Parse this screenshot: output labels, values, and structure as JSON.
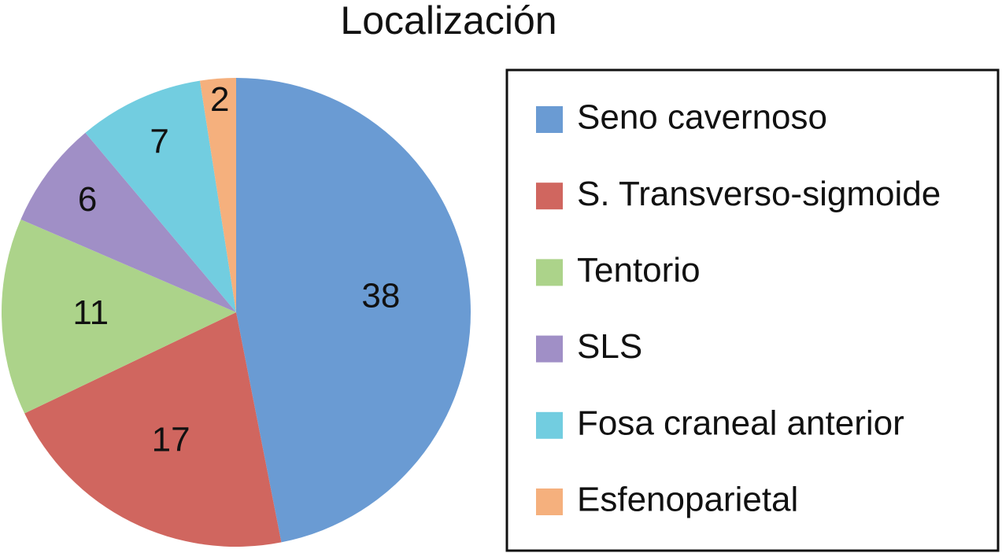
{
  "chart_data": {
    "type": "pie",
    "title": "Localización",
    "categories": [
      "Seno cavernoso",
      "S. Transverso-sigmoide",
      "Tentorio",
      "SLS",
      "Fosa craneal anterior",
      "Esfenoparietal"
    ],
    "values": [
      38,
      17,
      11,
      6,
      7,
      2
    ],
    "colors": [
      "#6a9bd3",
      "#d0665f",
      "#acd38a",
      "#a08fc6",
      "#72cde0",
      "#f5b07d"
    ],
    "legend": "right"
  }
}
